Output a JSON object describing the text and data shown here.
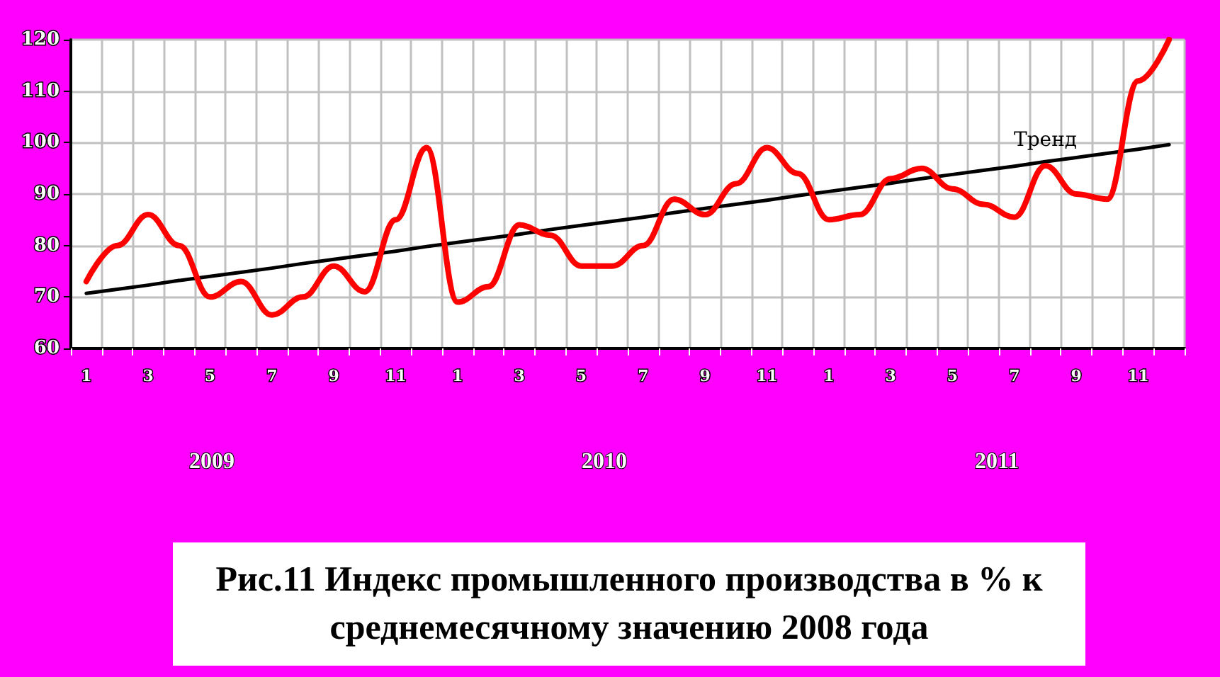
{
  "chart_data": {
    "type": "line",
    "title": "Рис.11 Индекс промышленного производства в % к среднемесячному значению 2008 года",
    "categories": [
      "1",
      null,
      "3",
      null,
      "5",
      null,
      "7",
      null,
      "9",
      null,
      "11",
      null,
      "1",
      null,
      "3",
      null,
      "5",
      null,
      "7",
      null,
      "9",
      null,
      "11",
      null,
      "1",
      null,
      "3",
      null,
      "5",
      null,
      "7",
      null,
      "9",
      null,
      "11",
      null
    ],
    "series": [
      {
        "color": "#ff0000",
        "values": [
          73,
          80,
          86,
          80,
          70,
          73,
          66.5,
          70,
          76,
          71,
          85,
          99,
          69,
          72,
          84,
          82,
          76,
          76,
          80,
          89,
          86,
          92,
          99,
          94,
          85,
          86,
          93,
          95,
          91,
          88,
          85.5,
          95.5,
          90,
          89,
          112,
          120
        ]
      },
      {
        "name": "Тренд",
        "color": "#000000",
        "values": [
          70.7,
          71.5,
          72.3,
          73.2,
          74,
          74.8,
          75.6,
          76.5,
          77.3,
          78.1,
          78.9,
          79.8,
          80.6,
          81.4,
          82.2,
          83.1,
          83.9,
          84.7,
          85.5,
          86.4,
          87.2,
          88,
          88.8,
          89.7,
          90.5,
          91.3,
          92.1,
          93,
          93.8,
          94.6,
          95.4,
          96.3,
          97.1,
          97.9,
          98.7,
          99.6
        ]
      }
    ],
    "annotations": [
      "2009",
      "2010",
      "2011"
    ],
    "ylim": [
      60,
      120
    ],
    "yticks": [
      60,
      70,
      80,
      90,
      100,
      110,
      120
    ],
    "grid": true,
    "marker": "none",
    "line_style": "solid"
  }
}
